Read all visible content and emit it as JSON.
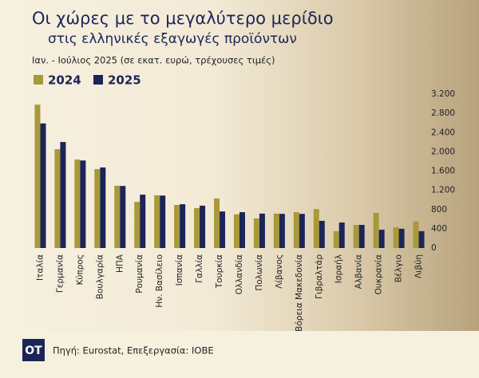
{
  "chart_data": {
    "type": "bar",
    "title": "Οι χώρες με το μεγαλύτερο μερίδιο",
    "subtitle": "στις ελληνικές εξαγωγές προϊόντων",
    "note": "Ιαν. - Ιούλιος 2025 (σε εκατ. ευρώ, τρέχουσες τιμές)",
    "source": "Πηγή: Eurostat, Επεξεργασία: ΙΟΒΕ",
    "logo": "OT",
    "categories": [
      "Ιταλία",
      "Γερμανία",
      "Κύπρος",
      "Βουλγαρία",
      "ΗΠΑ",
      "Ρουμανία",
      "Ην. Βασίλειο",
      "Ισπανία",
      "Γαλλία",
      "Τουρκία",
      "Ολλανδία",
      "Πολωνία",
      "Λίβανος",
      "Βόρεια Μακεδονία",
      "Γιβραλτάρ",
      "Ισραήλ",
      "Αλβανία",
      "Ουκρανία",
      "Βέλγιο",
      "Λιβύη"
    ],
    "series": [
      {
        "name": "2024",
        "color": "#a8993a",
        "values": [
          2980,
          2055,
          1840,
          1640,
          1295,
          960,
          1095,
          895,
          830,
          1030,
          700,
          615,
          715,
          745,
          810,
          350,
          480,
          730,
          430,
          550
        ]
      },
      {
        "name": "2025",
        "color": "#1c2557",
        "values": [
          2590,
          2205,
          1820,
          1675,
          1290,
          1110,
          1090,
          910,
          880,
          760,
          745,
          715,
          710,
          710,
          565,
          530,
          480,
          380,
          400,
          350
        ]
      }
    ],
    "ylim": [
      0,
      3200
    ],
    "yticks": [
      0,
      400,
      800,
      {
        "value": 1200,
        "label": "1.200"
      },
      {
        "value": 1600,
        "label": "1.600"
      },
      {
        "value": 2000,
        "label": "2.000"
      },
      {
        "value": 2400,
        "label": "2.400"
      },
      {
        "value": 2800,
        "label": "2.800"
      },
      {
        "value": 3200,
        "label": "3.200"
      }
    ],
    "legend": "top-left"
  }
}
